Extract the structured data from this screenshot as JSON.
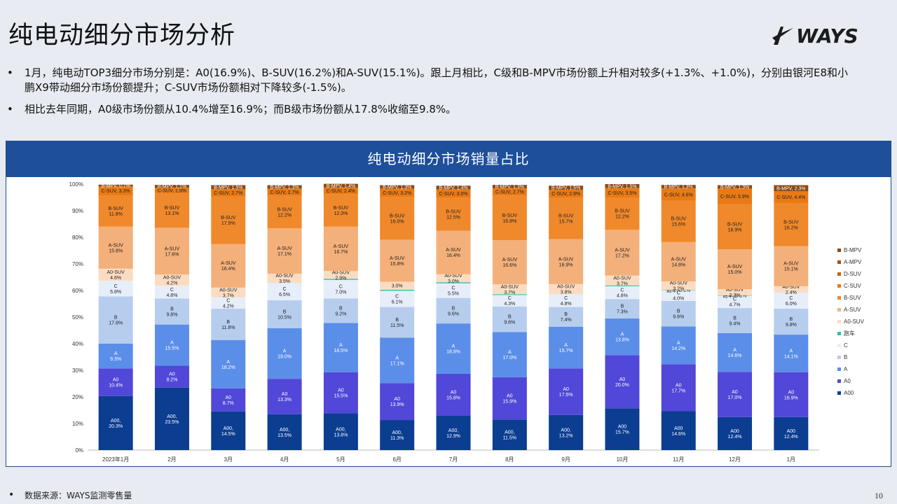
{
  "page": {
    "title": "纯电动细分市场分析",
    "logo_text": "WAYS",
    "bullets": [
      "1月，纯电动TOP3细分市场分别是：A0(16.9%)、B-SUV(16.2%)和A-SUV(15.1%)。跟上月相比，C级和B-MPV市场份额上升相对较多(+1.3%、+1.0%)，分别由银河E8和小鹏X9带动细分市场份额提升；C-SUV市场份额相对下降较多(-1.5%)。",
      "相比去年同期，A0级市场份额从10.4%增至16.9%；而B级市场份额从17.8%收缩至9.8%。"
    ],
    "bullet_char": "•",
    "footer": "数据来源：WAYS监测零售量",
    "page_number": "10"
  },
  "chart_data": {
    "type": "bar",
    "stacked": true,
    "title": "纯电动细分市场销量占比",
    "yticks": [
      "0%",
      "10%",
      "20%",
      "30%",
      "40%",
      "50%",
      "60%",
      "70%",
      "80%",
      "90%",
      "100%"
    ],
    "ylim": [
      0,
      100
    ],
    "legend_position": "right",
    "categories": [
      "2023年1月",
      "2月",
      "3月",
      "4月",
      "5月",
      "6月",
      "7月",
      "8月",
      "9月",
      "10月",
      "11月",
      "12月",
      "1月"
    ],
    "series": [
      {
        "name": "A00",
        "color": "#0b3d91",
        "values": [
          20.3,
          23.5,
          14.5,
          13.5,
          13.8,
          11.3,
          12.9,
          11.5,
          13.2,
          15.7,
          14.6,
          12.4,
          12.4
        ],
        "labels": [
          "A00,\n20.3%",
          "A00,\n23.5%",
          "A00,\n14.5%",
          "A00,\n13.5%",
          "A00,\n13.8%",
          "A00,\n11.3%",
          "A00,\n12.9%",
          "A00,\n11.5%",
          "A00,\n13.2%",
          "A00\n15.7%",
          "A00\n14.6%",
          "A00\n12.4%",
          "A00\n12.4%"
        ]
      },
      {
        "name": "A0",
        "color": "#5147d8",
        "values": [
          10.4,
          8.2,
          8.7,
          13.3,
          15.5,
          13.9,
          15.8,
          15.9,
          17.5,
          20.0,
          17.7,
          17.0,
          16.9
        ],
        "labels": [
          "A0\n10.4%",
          "A0\n8.2%",
          "A0\n8.7%",
          "A0\n13.3%",
          "A0\n15.5%",
          "A0\n13.9%",
          "A0\n15.8%",
          "A0\n15.9%",
          "A0\n17.5%",
          "A0\n20.0%",
          "A0\n17.7%",
          "A0\n17.0%",
          "A0\n16.9%"
        ]
      },
      {
        "name": "A",
        "color": "#5b8ee8",
        "values": [
          9.3,
          15.5,
          18.2,
          19.0,
          18.5,
          17.1,
          18.9,
          17.0,
          15.7,
          13.8,
          14.2,
          14.6,
          14.1
        ],
        "labels": [
          "A\n9.3%",
          "A\n15.5%",
          "A\n18.2%",
          "A\n19.0%",
          "A\n18.5%",
          "A\n17.1%",
          "A\n18.9%",
          "A\n17.0%",
          "A\n15.7%",
          "A\n13.8%",
          "A\n14.2%",
          "A\n14.6%",
          "A\n14.1%"
        ]
      },
      {
        "name": "B",
        "color": "#b6cdee",
        "values": [
          17.8,
          9.8,
          11.8,
          10.5,
          9.2,
          11.5,
          9.6,
          9.6,
          7.4,
          7.3,
          9.6,
          9.4,
          9.8
        ],
        "labels": [
          "B\n17.8%",
          "B\n9.8%",
          "B\n11.8%",
          "B\n10.5%",
          "B\n9.2%",
          "B\n11.5%",
          "B\n9.6%",
          "B\n9.6%",
          "B\n7.4%",
          "B\n7.3%",
          "B\n9.6%",
          "B\n9.4%",
          "B\n9.8%"
        ]
      },
      {
        "name": "C",
        "color": "#e6eefa",
        "values": [
          5.8,
          4.8,
          4.2,
          6.5,
          7.0,
          6.1,
          5.5,
          4.3,
          4.8,
          4.8,
          4.0,
          4.7,
          6.0
        ],
        "labels": [
          "C\n5.8%",
          "C\n4.8%",
          "C\n4.2%",
          "C\n6.5%",
          "C\n7.0%",
          "C\n6.1%",
          "C\n5.5%",
          "C\n4.3%",
          "C\n4.8%",
          "C\n4.8%",
          "C\n4.0%",
          "C\n4.7%",
          "C\n6.0%"
        ]
      },
      {
        "name": "跑车",
        "color": "#2ec0a8",
        "values": [
          0,
          0,
          0,
          0,
          0.4,
          0.4,
          0.4,
          0.3,
          0,
          0.3,
          0.1,
          0.1,
          0.0
        ],
        "labels": [
          "",
          "",
          "",
          "",
          "",
          "",
          "",
          "",
          "",
          "",
          "跑车, 0.1%",
          "跑车, 0.1%",
          "跑车, 0.0%"
        ]
      },
      {
        "name": "A0-SUV",
        "color": "#fbdcc2",
        "values": [
          4.6,
          4.2,
          3.7,
          3.5,
          2.9,
          3.0,
          3.0,
          3.7,
          3.8,
          3.7,
          3.2,
          2.3,
          2.4
        ],
        "labels": [
          "A0-SUV\n4.6%",
          "A0-SUV\n4.2%",
          "A0-SUV\n3.7%",
          "A0-SUV\n3.5%",
          "A0-SUV\n2.9%",
          "3.0%",
          "A0-SUV\n3.0%",
          "A0-SUV\n3.7%",
          "A0-SUV\n3.8%",
          "A0-SUV\n3.7%",
          "A0-SUV\n3.2%",
          "A0-SUV\n2.3%",
          "A0-SUV\n2.4%"
        ]
      },
      {
        "name": "A-SUV",
        "color": "#f4b07a",
        "values": [
          15.8,
          17.6,
          16.4,
          17.1,
          16.7,
          15.8,
          16.4,
          16.6,
          16.9,
          17.2,
          14.8,
          15.0,
          15.1
        ],
        "labels": [
          "A-SUV\n15.8%",
          "A-SUV\n17.6%",
          "A-SUV\n16.4%",
          "A-SUV\n17.1%",
          "A-SUV\n16.7%",
          "A-SUV\n15.8%",
          "A-SUV\n16.4%",
          "A-SUV\n16.6%",
          "A-SUV\n16.9%",
          "A-SUV\n17.2%",
          "A-SUV\n14.8%",
          "A-SUV\n15.0%",
          "A-SUV\n15.1%"
        ]
      },
      {
        "name": "B-SUV",
        "color": "#f0892b",
        "values": [
          11.8,
          13.1,
          17.9,
          12.2,
          12.3,
          16.0,
          12.5,
          16.8,
          15.7,
          12.2,
          15.6,
          16.9,
          16.2
        ],
        "labels": [
          "B-SUV\n11.8%",
          "B-SUV\n13.1%",
          "B-SUV\n17.9%",
          "B-SUV\n12.2%",
          "B-SUV\n12.3%",
          "B-SUV\n16.0%",
          "B-SUV\n12.5%",
          "B-SUV\n16.8%",
          "B-SUV\n15.7%",
          "B-SUV\n12.2%",
          "B-SUV\n15.6%",
          "B-SUV\n16.9%",
          "B-SUV\n16.2%"
        ]
      },
      {
        "name": "C-SUV",
        "color": "#e97a14",
        "values": [
          3.3,
          1.9,
          2.7,
          2.7,
          2.4,
          3.2,
          3.0,
          2.7,
          2.9,
          3.5,
          4.6,
          5.9,
          4.4
        ],
        "labels": [
          "C-SUV, 3.3%",
          "C-SUV, 1.9%",
          "C-SUV, 2.7%",
          "C-SUV, 2.7%",
          "C-SUV, 2.4%",
          "C-SUV, 3.2%",
          "C-SUV, 3.0%",
          "C-SUV, 2.7%",
          "C-SUV, 2.9%",
          "C-SUV, 3.5%",
          "C-SUV, 4.6%",
          "C-SUV, 5.9%",
          "C-SUV, 4.4%"
        ]
      },
      {
        "name": "D-SUV",
        "color": "#c8620f",
        "values": [
          0,
          0,
          0,
          0,
          0,
          0,
          0,
          0,
          0,
          0,
          0,
          0,
          0
        ],
        "labels": []
      },
      {
        "name": "A-MPV",
        "color": "#a9500c",
        "values": [
          0,
          0,
          0,
          0,
          0,
          0,
          0,
          0,
          0,
          0,
          0,
          0,
          0
        ],
        "labels": []
      },
      {
        "name": "B-MPV",
        "color": "#8a4a14",
        "values": [
          0.7,
          1.1,
          1.5,
          1.3,
          1.4,
          1.3,
          1.4,
          1.3,
          1.5,
          1.5,
          1.3,
          1.3,
          2.3
        ],
        "labels": [
          "B-MPV, 0.7%",
          "B-MPV, 1.1%",
          "B-MPV, 1.5%",
          "B-MPV, 1.3%",
          "B-MPV, 1.4%",
          "B-MPV, 1.3%",
          "B-MPV, 1.4%",
          "B-MPV, 1.3%",
          "B-MPV, 1.5%",
          "B-MPV, 1.5%",
          "B-MPV, 1.3%",
          "B-MPV, 1.3%",
          "B-MPV, 2.3%"
        ]
      }
    ]
  }
}
